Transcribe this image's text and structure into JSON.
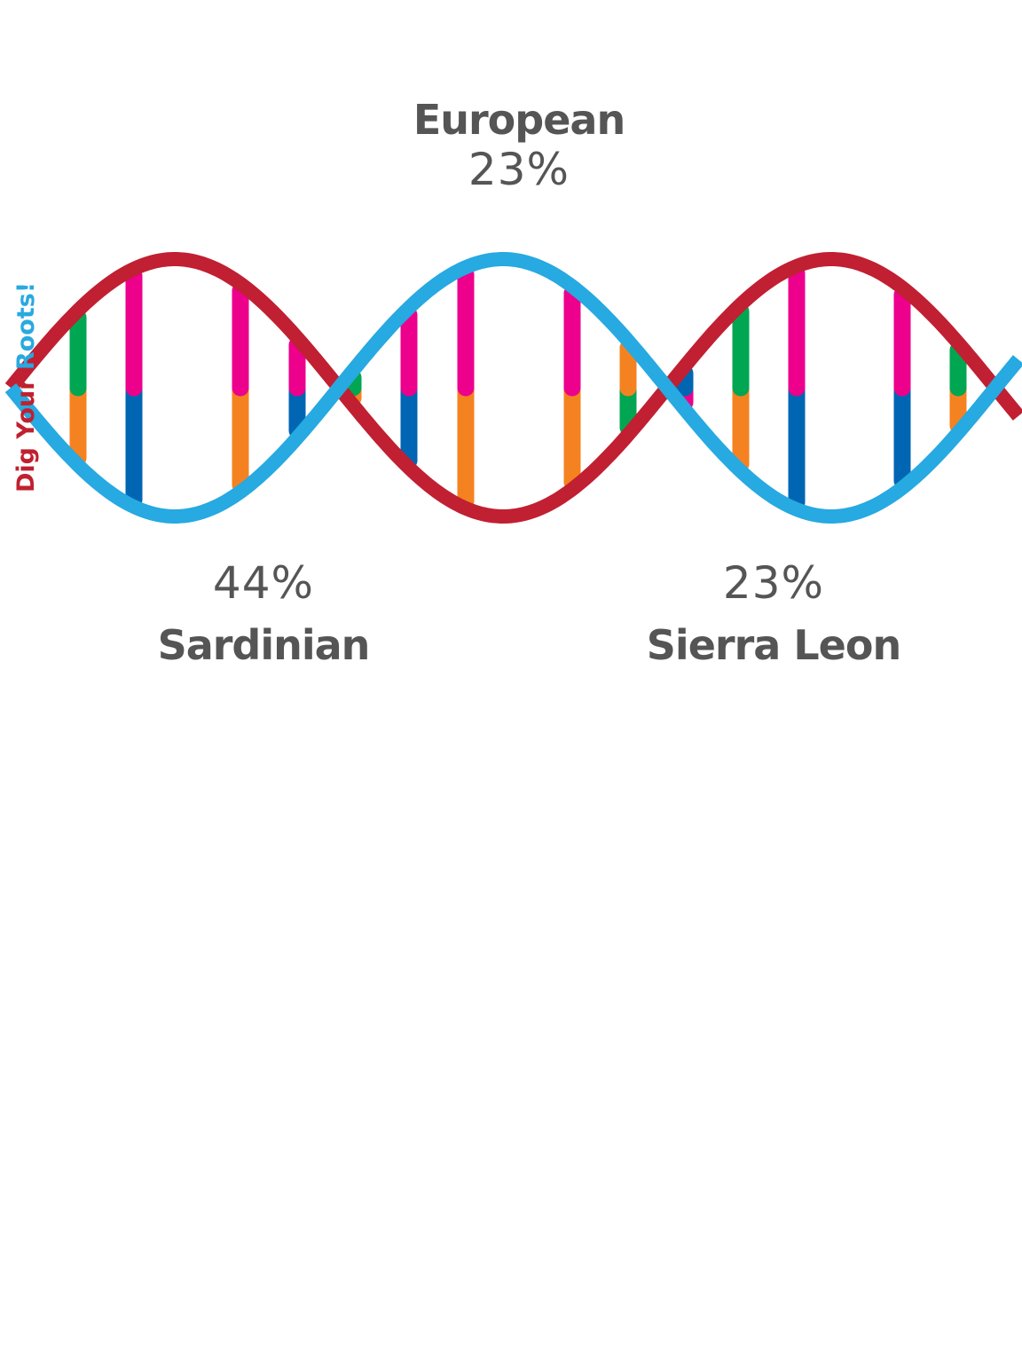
{
  "branding": {
    "part1": "Dig Your",
    "part2": "Roots!",
    "color1": "#c0202f",
    "color2": "#29a9e0"
  },
  "colors": {
    "strand_red": "#c11f32",
    "strand_blue": "#27a9e1",
    "green": "#00a651",
    "orange": "#f58220",
    "pink": "#ec008c",
    "blue": "#0066b3",
    "text": "#555555"
  },
  "ancestry": {
    "european": {
      "name": "European",
      "percent": "23%"
    },
    "sardinian": {
      "name": "Sardinian",
      "percent": "44%"
    },
    "sierra_leon": {
      "name": "Sierra Leon",
      "percent": "23%"
    }
  },
  "rungs": [
    [
      "green",
      "orange"
    ],
    [
      "pink",
      "blue"
    ],
    [
      "pink",
      "orange"
    ],
    [
      "pink",
      "blue"
    ],
    [
      "green",
      "orange"
    ],
    [
      "pink",
      "blue"
    ],
    [
      "pink",
      "orange"
    ],
    [
      "pink",
      "orange"
    ],
    [
      "orange",
      "green"
    ],
    [
      "blue",
      "pink"
    ],
    [
      "green",
      "orange"
    ],
    [
      "pink",
      "blue"
    ],
    [
      "pink",
      "blue"
    ],
    [
      "green",
      "orange"
    ]
  ]
}
